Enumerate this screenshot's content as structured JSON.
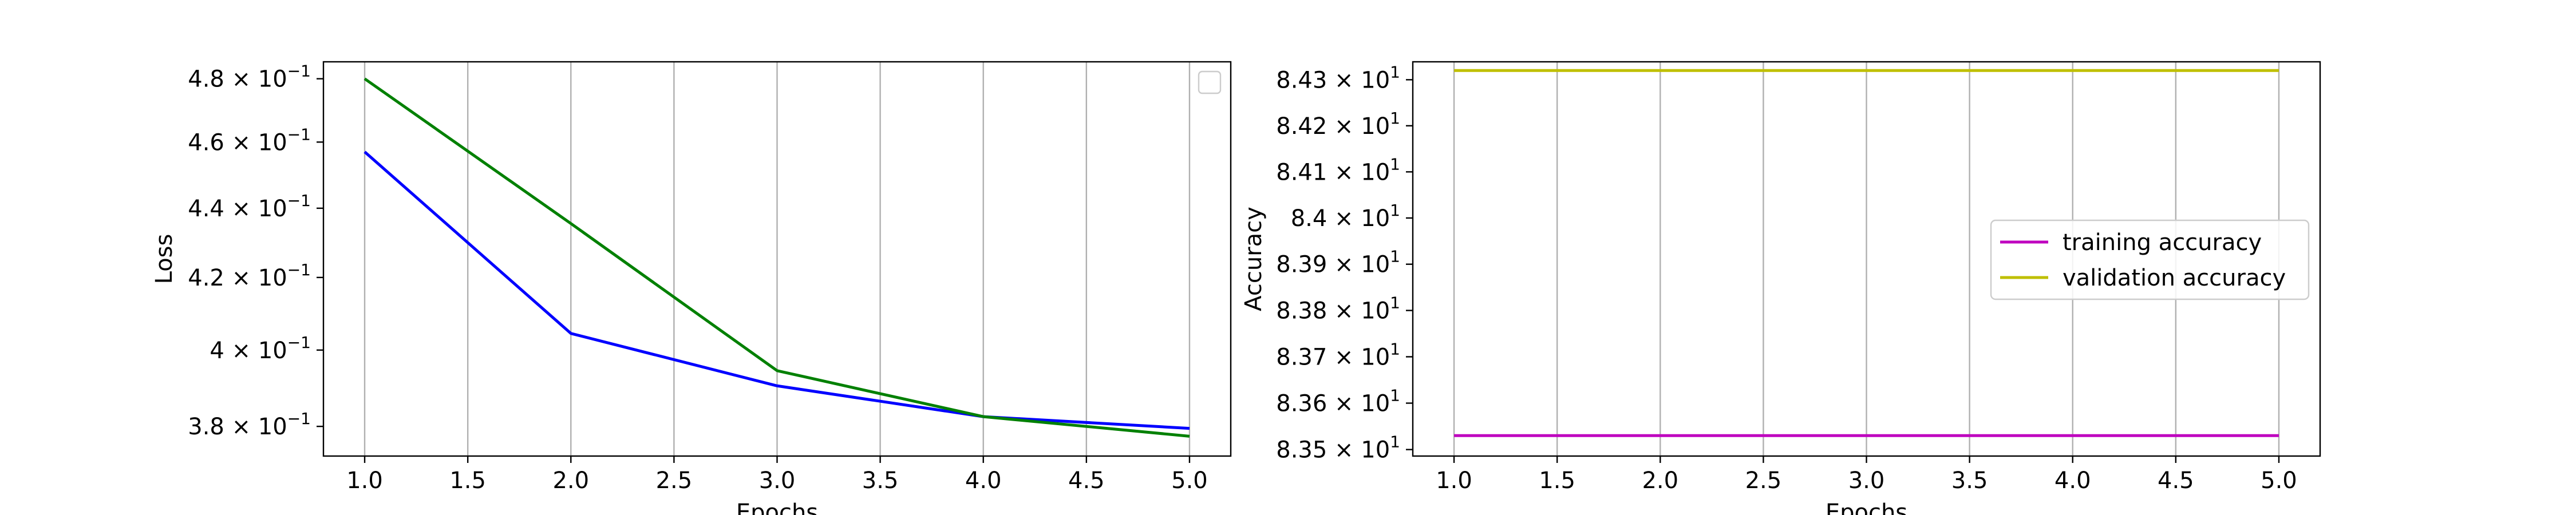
{
  "chart_data": [
    {
      "type": "line",
      "xlabel": "Epochs",
      "ylabel": "Loss",
      "y_scale": "log",
      "grid": "x",
      "legend": "top-right",
      "legend_entries": [],
      "xlim": [
        0.8,
        5.2
      ],
      "ylim": [
        0.3725,
        0.4855
      ],
      "xticks": [
        1.0,
        1.5,
        2.0,
        2.5,
        3.0,
        3.5,
        4.0,
        4.5,
        5.0
      ],
      "xtick_labels": [
        "1.0",
        "1.5",
        "2.0",
        "2.5",
        "3.0",
        "3.5",
        "4.0",
        "4.5",
        "5.0"
      ],
      "yticks": [
        {
          "value": 0.38,
          "mantissa": "3.8",
          "exp": "−1"
        },
        {
          "value": 0.4,
          "mantissa": "4",
          "exp": "−1"
        },
        {
          "value": 0.42,
          "mantissa": "4.2",
          "exp": "−1"
        },
        {
          "value": 0.44,
          "mantissa": "4.4",
          "exp": "−1"
        },
        {
          "value": 0.46,
          "mantissa": "4.6",
          "exp": "−1"
        },
        {
          "value": 0.48,
          "mantissa": "4.8",
          "exp": "−1"
        }
      ],
      "series": [
        {
          "color": "#0000ff",
          "x": [
            1,
            2,
            3,
            4,
            5
          ],
          "values": [
            0.457,
            0.4045,
            0.3905,
            0.3825,
            0.3795
          ]
        },
        {
          "color": "#008000",
          "x": [
            1,
            2,
            3,
            4,
            5
          ],
          "values": [
            0.48,
            0.4355,
            0.3945,
            0.3825,
            0.3775
          ]
        }
      ]
    },
    {
      "type": "line",
      "xlabel": "Epochs",
      "ylabel": "Accuracy",
      "y_scale": "log",
      "grid": "x",
      "legend": "center-right",
      "xlim": [
        0.8,
        5.2
      ],
      "ylim": [
        83.486,
        84.339
      ],
      "xticks": [
        1.0,
        1.5,
        2.0,
        2.5,
        3.0,
        3.5,
        4.0,
        4.5,
        5.0
      ],
      "xtick_labels": [
        "1.0",
        "1.5",
        "2.0",
        "2.5",
        "3.0",
        "3.5",
        "4.0",
        "4.5",
        "5.0"
      ],
      "yticks": [
        {
          "value": 83.5,
          "mantissa": "8.35",
          "exp": "1"
        },
        {
          "value": 83.6,
          "mantissa": "8.36",
          "exp": "1"
        },
        {
          "value": 83.7,
          "mantissa": "8.37",
          "exp": "1"
        },
        {
          "value": 83.8,
          "mantissa": "8.38",
          "exp": "1"
        },
        {
          "value": 83.9,
          "mantissa": "8.39",
          "exp": "1"
        },
        {
          "value": 84.0,
          "mantissa": "8.4",
          "exp": "1"
        },
        {
          "value": 84.1,
          "mantissa": "8.41",
          "exp": "1"
        },
        {
          "value": 84.2,
          "mantissa": "8.42",
          "exp": "1"
        },
        {
          "value": 84.3,
          "mantissa": "8.43",
          "exp": "1"
        }
      ],
      "series": [
        {
          "name": "training accuracy",
          "color": "#bf00bf",
          "x": [
            1,
            2,
            3,
            4,
            5
          ],
          "values": [
            83.53,
            83.53,
            83.53,
            83.53,
            83.53
          ]
        },
        {
          "name": "validation accuracy",
          "color": "#bfbf00",
          "x": [
            1,
            2,
            3,
            4,
            5
          ],
          "values": [
            84.32,
            84.32,
            84.32,
            84.32,
            84.32
          ]
        }
      ]
    }
  ]
}
